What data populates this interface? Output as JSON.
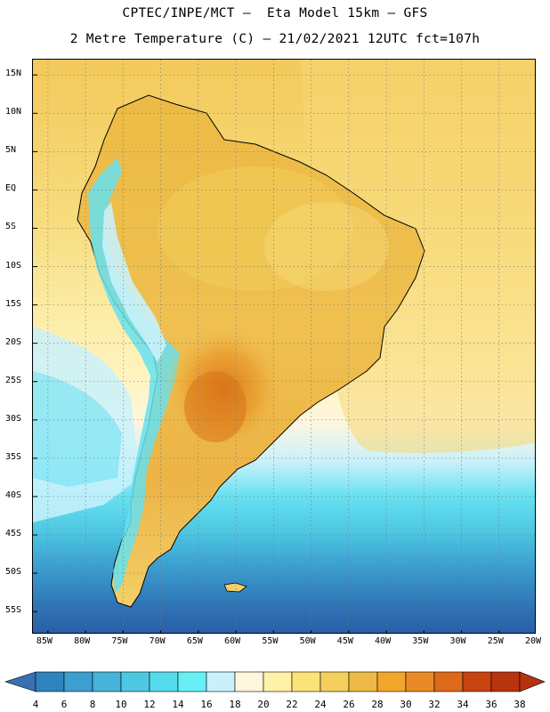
{
  "header": {
    "line1": "CPTEC/INPE/MCT –  Eta Model 15km – GFS",
    "line2": "2 Metre Temperature (C) – 21/02/2021 12UTC fct=107h"
  },
  "map": {
    "region": "South America",
    "variable": "2 Metre Temperature",
    "units": "C",
    "lat_range": [
      -58,
      17
    ],
    "lon_range": [
      -87,
      -20
    ],
    "lat_labels": [
      "15N",
      "10N",
      "5N",
      "EQ",
      "5S",
      "10S",
      "15S",
      "20S",
      "25S",
      "30S",
      "35S",
      "40S",
      "45S",
      "50S",
      "55S"
    ],
    "lat_values": [
      15,
      10,
      5,
      0,
      -5,
      -10,
      -15,
      -20,
      -25,
      -30,
      -35,
      -40,
      -45,
      -50,
      -55
    ],
    "lon_labels": [
      "85W",
      "80W",
      "75W",
      "70W",
      "65W",
      "60W",
      "55W",
      "50W",
      "45W",
      "40W",
      "35W",
      "30W",
      "25W",
      "20W"
    ],
    "lon_values": [
      -85,
      -80,
      -75,
      -70,
      -65,
      -60,
      -55,
      -50,
      -45,
      -40,
      -35,
      -30,
      -25,
      -20
    ]
  },
  "colorbar": {
    "labels": [
      "4",
      "6",
      "8",
      "10",
      "12",
      "14",
      "16",
      "18",
      "20",
      "22",
      "24",
      "26",
      "28",
      "30",
      "32",
      "34",
      "36",
      "38"
    ],
    "colors": [
      "#3a6fb0",
      "#2f84bf",
      "#3c9fd0",
      "#46b3d9",
      "#4ec8e2",
      "#55dcec",
      "#66f0f6",
      "#c9f1fb",
      "#fff6de",
      "#fff1a8",
      "#fbe37a",
      "#f4cf5c",
      "#ecba45",
      "#f1a52b",
      "#e98a26",
      "#de6a19",
      "#c94310",
      "#b8340c"
    ],
    "low_color": "#3a6fb0",
    "high_color": "#b5320c"
  }
}
